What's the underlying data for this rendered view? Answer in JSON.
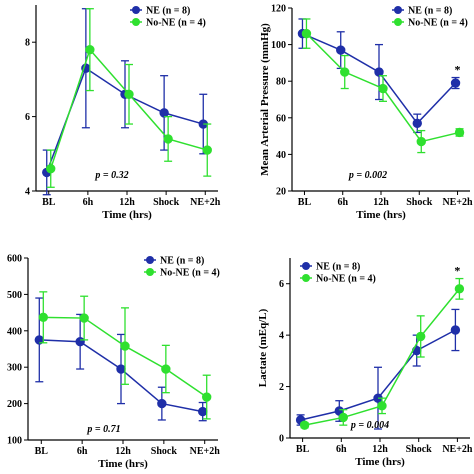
{
  "colors": {
    "ne": "#1f2fa8",
    "no_ne": "#2fe02f",
    "axis": "#000000"
  },
  "chart_data": [
    {
      "type": "line",
      "categories": [
        "BL",
        "6h",
        "12h",
        "Shock",
        "NE+2h"
      ],
      "xlabel": "Time (hrs)",
      "ylabel": "",
      "ylim": [
        4,
        9
      ],
      "yticks": [
        "4",
        "6",
        "8"
      ],
      "legend_position": "top-right",
      "annotation": "p = 0.32",
      "star_on": null,
      "series": [
        {
          "name": "NE (n = 8)",
          "values": [
            4.5,
            7.3,
            6.6,
            6.1,
            5.8
          ],
          "err": [
            0.6,
            1.6,
            0.9,
            1.0,
            0.8
          ]
        },
        {
          "name": "No-NE (n = 4)",
          "values": [
            4.6,
            7.8,
            6.6,
            5.4,
            5.1
          ],
          "err": [
            0.5,
            1.1,
            0.8,
            0.6,
            0.7
          ]
        }
      ]
    },
    {
      "type": "line",
      "categories": [
        "BL",
        "6h",
        "12h",
        "Shock",
        "NE+2h"
      ],
      "xlabel": "Time (hrs)",
      "ylabel": "Mean Arterial Pressure (mmHg)",
      "ylim": [
        20,
        120
      ],
      "yticks": [
        "20",
        "40",
        "60",
        "80",
        "100",
        "120"
      ],
      "legend_position": "top-right",
      "annotation": "p = 0.002",
      "star_on": 4,
      "star": "*",
      "series": [
        {
          "name": "NE (n = 8)",
          "values": [
            106,
            97,
            85,
            57,
            79
          ],
          "err": [
            8,
            10,
            15,
            5,
            3
          ]
        },
        {
          "name": "No-NE (n = 4)",
          "values": [
            106,
            85,
            76,
            47,
            52
          ],
          "err": [
            8,
            9,
            7,
            6,
            2
          ]
        }
      ]
    },
    {
      "type": "line",
      "categories": [
        "BL",
        "6h",
        "12h",
        "Shock",
        "NE+2h"
      ],
      "xlabel": "Time (hrs)",
      "ylabel": "",
      "ylim": [
        100,
        600
      ],
      "yticks": [
        "100",
        "200",
        "300",
        "400",
        "500",
        "600"
      ],
      "legend_position": "top-right",
      "annotation": "p = 0.71",
      "star_on": null,
      "series": [
        {
          "name": "NE (n = 8)",
          "values": [
            375,
            370,
            295,
            200,
            178
          ],
          "err": [
            115,
            75,
            95,
            45,
            25
          ]
        },
        {
          "name": "No-NE (n = 4)",
          "values": [
            437,
            435,
            358,
            295,
            218
          ],
          "err": [
            70,
            60,
            105,
            65,
            60
          ]
        }
      ]
    },
    {
      "type": "line",
      "categories": [
        "BL",
        "6h",
        "12h",
        "Shock",
        "NE+2h"
      ],
      "xlabel": "Time (hrs)",
      "ylabel": "Lactate (mEq/L)",
      "ylim": [
        0,
        7
      ],
      "yticks": [
        "0",
        "2",
        "4",
        "6"
      ],
      "legend_position": "top-left",
      "annotation": "p = 0.004",
      "star_on": 4,
      "star": "*",
      "series": [
        {
          "name": "NE (n = 8)",
          "values": [
            0.7,
            1.05,
            1.55,
            3.4,
            4.2
          ],
          "err": [
            0.2,
            0.4,
            1.2,
            0.6,
            0.8
          ]
        },
        {
          "name": "No-NE (n = 4)",
          "values": [
            0.5,
            0.8,
            1.25,
            3.95,
            5.8
          ],
          "err": [
            0.1,
            0.3,
            0.3,
            0.8,
            0.4
          ]
        }
      ]
    }
  ]
}
